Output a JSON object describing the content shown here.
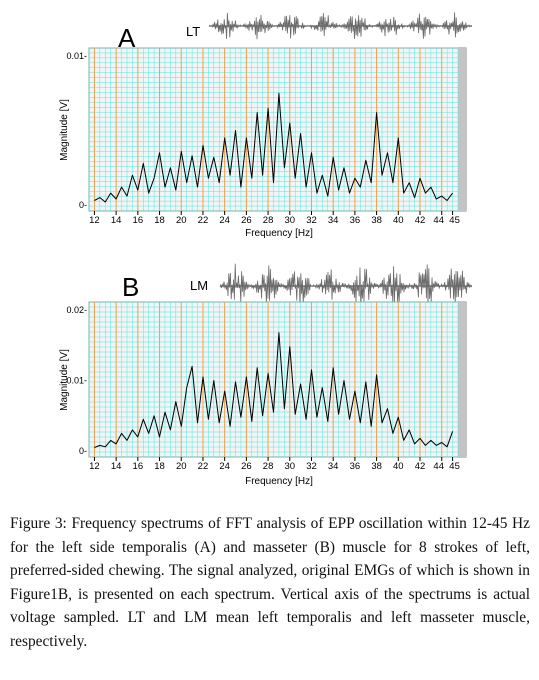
{
  "caption": "Figure 3: Frequency spectrums of FFT analysis of EPP oscillation within 12-45 Hz for the left side temporalis (A) and masseter (B) muscle for 8 strokes of left, preferred-sided chewing. The signal analyzed, original EMGs of which is shown in Figure1B, is presented on each spectrum. Vertical axis of the spectrums is actual voltage sampled. LT and LM mean left temporalis and left masseter muscle, respectively.",
  "colors": {
    "panel": "#f4f4f4",
    "grid": "#4fe8e0",
    "major": "#f0a050",
    "trace": "#000000",
    "emg": "#6a6a6a"
  },
  "chart_data": [
    {
      "type": "line",
      "panel_label": "A",
      "emg_label": "LT",
      "xlabel": "Frequency  [Hz]",
      "ylabel": "Magnitude  [V]",
      "xlim": [
        11.5,
        45.5
      ],
      "ylim": [
        0,
        0.01
      ],
      "x_ticks": [
        "12",
        "14",
        "16",
        "18",
        "20",
        "22",
        "24",
        "26",
        "28",
        "30",
        "32",
        "34",
        "36",
        "38",
        "40",
        "42",
        "44",
        "45"
      ],
      "y_ticks": [
        "0.01-",
        "0-"
      ],
      "grid": true,
      "series": [
        {
          "x": [
            12,
            12.5,
            13,
            13.5,
            14,
            14.5,
            15,
            15.5,
            16,
            16.5,
            17,
            17.5,
            18,
            18.5,
            19,
            19.5,
            20,
            20.5,
            21,
            21.5,
            22,
            22.5,
            23,
            23.5,
            24,
            24.5,
            25,
            25.5,
            26,
            26.5,
            27,
            27.5,
            28,
            28.5,
            29,
            29.5,
            30,
            30.5,
            31,
            31.5,
            32,
            32.5,
            33,
            33.5,
            34,
            34.5,
            35,
            35.5,
            36,
            36.5,
            37,
            37.5,
            38,
            38.5,
            39,
            39.5,
            40,
            40.5,
            41,
            41.5,
            42,
            42.5,
            43,
            43.5,
            44,
            44.5,
            45
          ],
          "values": [
            0.0003,
            0.0005,
            0.0002,
            0.0008,
            0.0004,
            0.0012,
            0.0006,
            0.002,
            0.001,
            0.0028,
            0.0008,
            0.0018,
            0.0035,
            0.0012,
            0.0025,
            0.001,
            0.0036,
            0.0015,
            0.0033,
            0.0012,
            0.004,
            0.0018,
            0.0032,
            0.0015,
            0.0045,
            0.002,
            0.005,
            0.0012,
            0.0045,
            0.0018,
            0.0062,
            0.002,
            0.0065,
            0.0015,
            0.0075,
            0.0025,
            0.0055,
            0.0018,
            0.0048,
            0.0012,
            0.0035,
            0.0008,
            0.002,
            0.0006,
            0.0032,
            0.001,
            0.0025,
            0.0008,
            0.0018,
            0.0012,
            0.003,
            0.0015,
            0.0062,
            0.002,
            0.0035,
            0.0015,
            0.0045,
            0.0008,
            0.0015,
            0.0005,
            0.0018,
            0.0008,
            0.0012,
            0.0004,
            0.0006,
            0.0003,
            0.0008
          ]
        }
      ]
    },
    {
      "type": "line",
      "panel_label": "B",
      "emg_label": "LM",
      "xlabel": "Frequency  [Hz]",
      "ylabel": "Magnitude  [V]",
      "xlim": [
        11.5,
        45.5
      ],
      "ylim": [
        0,
        0.02
      ],
      "x_ticks": [
        "12",
        "14",
        "16",
        "18",
        "20",
        "22",
        "24",
        "26",
        "28",
        "30",
        "32",
        "34",
        "36",
        "38",
        "40",
        "42",
        "44",
        "45"
      ],
      "y_ticks": [
        "0.02-",
        "0.01-",
        "0-"
      ],
      "grid": true,
      "series": [
        {
          "x": [
            12,
            12.5,
            13,
            13.5,
            14,
            14.5,
            15,
            15.5,
            16,
            16.5,
            17,
            17.5,
            18,
            18.5,
            19,
            19.5,
            20,
            20.5,
            21,
            21.5,
            22,
            22.5,
            23,
            23.5,
            24,
            24.5,
            25,
            25.5,
            26,
            26.5,
            27,
            27.5,
            28,
            28.5,
            29,
            29.5,
            30,
            30.5,
            31,
            31.5,
            32,
            32.5,
            33,
            33.5,
            34,
            34.5,
            35,
            35.5,
            36,
            36.5,
            37,
            37.5,
            38,
            38.5,
            39,
            39.5,
            40,
            40.5,
            41,
            41.5,
            42,
            42.5,
            43,
            43.5,
            44,
            44.5,
            45
          ],
          "values": [
            0.0005,
            0.0008,
            0.0006,
            0.0015,
            0.001,
            0.0025,
            0.0015,
            0.003,
            0.002,
            0.0045,
            0.0025,
            0.005,
            0.002,
            0.0055,
            0.003,
            0.007,
            0.0035,
            0.009,
            0.012,
            0.004,
            0.0105,
            0.0045,
            0.01,
            0.004,
            0.0085,
            0.0035,
            0.0098,
            0.0048,
            0.0105,
            0.0042,
            0.0118,
            0.005,
            0.011,
            0.0055,
            0.0168,
            0.006,
            0.0148,
            0.0052,
            0.0095,
            0.0045,
            0.0115,
            0.0048,
            0.009,
            0.0042,
            0.0118,
            0.0052,
            0.01,
            0.0045,
            0.0085,
            0.004,
            0.0098,
            0.0035,
            0.0108,
            0.004,
            0.006,
            0.0025,
            0.0048,
            0.0015,
            0.003,
            0.001,
            0.0018,
            0.0008,
            0.0015,
            0.0008,
            0.0012,
            0.0006,
            0.0028
          ]
        }
      ]
    }
  ]
}
